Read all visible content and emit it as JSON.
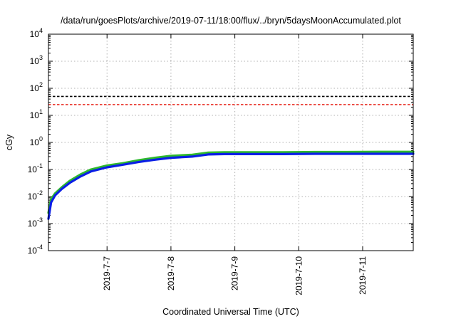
{
  "chart_data": {
    "type": "line",
    "title": "/data/run/goesPlots/archive/2019-07-11/18:00/flux/../bryn/5daysMoonAccumulated.plot",
    "xlabel": "Coordinated Universal Time (UTC)",
    "ylabel": "cGy",
    "x_range": [
      "2019-07-06T02:00",
      "2019-07-11T19:00"
    ],
    "x_ticks": [
      "2019-7-7",
      "2019-7-8",
      "2019-7-9",
      "2019-7-10",
      "2019-7-11"
    ],
    "y_scale": "log",
    "ylim": [
      0.0001,
      10000
    ],
    "y_ticks": [
      {
        "base": "10",
        "exp": "-4",
        "value": 0.0001
      },
      {
        "base": "10",
        "exp": "-3",
        "value": 0.001
      },
      {
        "base": "10",
        "exp": "-2",
        "value": 0.01
      },
      {
        "base": "10",
        "exp": "-1",
        "value": 0.1
      },
      {
        "base": "10",
        "exp": "0",
        "value": 1
      },
      {
        "base": "10",
        "exp": "1",
        "value": 10
      },
      {
        "base": "10",
        "exp": "2",
        "value": 100
      },
      {
        "base": "10",
        "exp": "3",
        "value": 1000
      },
      {
        "base": "10",
        "exp": "4",
        "value": 10000
      }
    ],
    "grid": true,
    "legend": "none",
    "reference_lines": [
      {
        "value": 50,
        "color": "#000000",
        "style": "dashed"
      },
      {
        "value": 25,
        "color": "#e8281e",
        "style": "dashed"
      }
    ],
    "series": [
      {
        "color": "#2eb82e",
        "x": [
          "2019-07-06T02:00",
          "2019-07-06T03:00",
          "2019-07-06T04:30",
          "2019-07-06T07:00",
          "2019-07-06T10:00",
          "2019-07-06T14:00",
          "2019-07-06T18:00",
          "2019-07-07T00:00",
          "2019-07-07T06:00",
          "2019-07-07T12:00",
          "2019-07-07T18:00",
          "2019-07-08T00:00",
          "2019-07-08T08:00",
          "2019-07-08T14:00",
          "2019-07-08T20:00",
          "2019-07-09T06:00",
          "2019-07-09T18:00",
          "2019-07-10T06:00",
          "2019-07-10T18:00",
          "2019-07-11T06:00",
          "2019-07-11T19:00"
        ],
        "y": [
          0.0025,
          0.008,
          0.013,
          0.022,
          0.038,
          0.065,
          0.1,
          0.14,
          0.17,
          0.22,
          0.27,
          0.32,
          0.35,
          0.42,
          0.43,
          0.43,
          0.43,
          0.44,
          0.44,
          0.45,
          0.45
        ]
      },
      {
        "color": "#0a1ee6",
        "x": [
          "2019-07-06T02:00",
          "2019-07-06T03:00",
          "2019-07-06T04:30",
          "2019-07-06T07:00",
          "2019-07-06T10:00",
          "2019-07-06T14:00",
          "2019-07-06T18:00",
          "2019-07-07T00:00",
          "2019-07-07T06:00",
          "2019-07-07T12:00",
          "2019-07-07T18:00",
          "2019-07-08T00:00",
          "2019-07-08T08:00",
          "2019-07-08T14:00",
          "2019-07-08T20:00",
          "2019-07-09T06:00",
          "2019-07-09T18:00",
          "2019-07-10T06:00",
          "2019-07-10T18:00",
          "2019-07-11T06:00",
          "2019-07-11T19:00"
        ],
        "y": [
          0.0015,
          0.006,
          0.011,
          0.019,
          0.032,
          0.055,
          0.085,
          0.12,
          0.15,
          0.19,
          0.23,
          0.27,
          0.3,
          0.36,
          0.37,
          0.37,
          0.37,
          0.38,
          0.38,
          0.38,
          0.38
        ]
      }
    ]
  }
}
